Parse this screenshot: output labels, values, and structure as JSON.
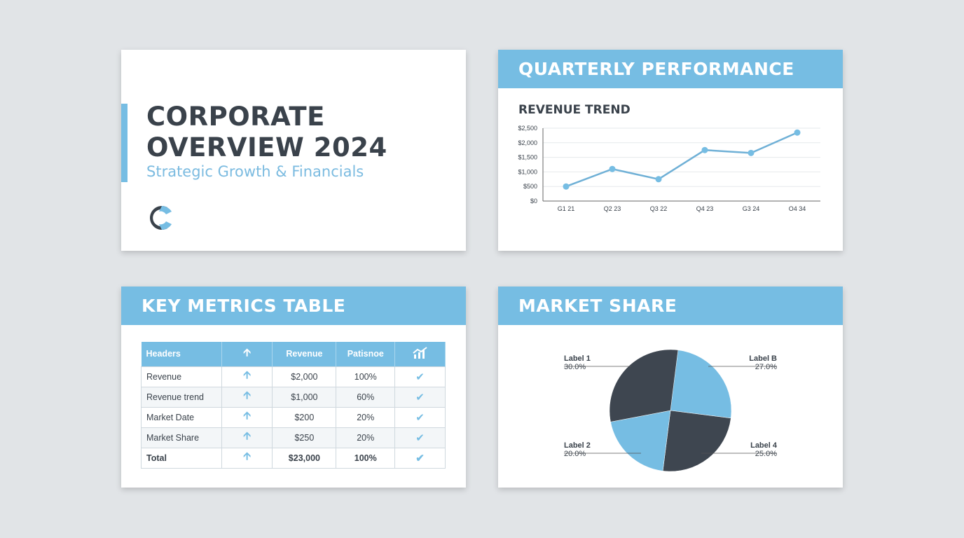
{
  "slides": {
    "cover": {
      "title_line1": "CORPORATE",
      "title_line2": "OVERVIEW 2024",
      "subtitle": "Strategic Growth & Financials",
      "logo": "c-logo-icon"
    },
    "quarterly": {
      "header": "QUARTERLY PERFORMANCE",
      "chart_title": "REVENUE TREND"
    },
    "metrics": {
      "header": "KEY METRICS TABLE",
      "columns": [
        "Headers",
        "↑",
        "Revenue",
        "Patisnoe",
        "chart-icon"
      ],
      "rows": [
        {
          "name": "Revenue",
          "revenue": "$2,000",
          "pct": "100%"
        },
        {
          "name": "Revenue trend",
          "revenue": "$1,000",
          "pct": "60%"
        },
        {
          "name": "Market Date",
          "revenue": "$200",
          "pct": "20%"
        },
        {
          "name": "Market Share",
          "revenue": "$250",
          "pct": "20%"
        },
        {
          "name": "Total",
          "revenue": "$23,000",
          "pct": "100%"
        }
      ]
    },
    "market": {
      "header": "MARKET SHARE"
    }
  },
  "colors": {
    "accent": "#76bde3",
    "dark": "#3a424b",
    "background": "#e1e4e7"
  },
  "chart_data": [
    {
      "type": "line",
      "title": "REVENUE TREND",
      "categories": [
        "G1 21",
        "Q2 23",
        "Q3 22",
        "Q4 23",
        "G3 24",
        "O4 34"
      ],
      "values": [
        500,
        1100,
        750,
        1750,
        1650,
        2350
      ],
      "ylim": [
        0,
        2500
      ],
      "yticks": [
        "$0",
        "$500",
        "$1,000",
        "$1,500",
        "$2,000",
        "$2,500"
      ],
      "grid": true
    },
    {
      "type": "pie",
      "title": "MARKET SHARE",
      "labels": [
        "Label 1",
        "Label B",
        "Label 2",
        "Label 4"
      ],
      "values": [
        30.0,
        27.0,
        20.0,
        25.0
      ],
      "value_labels": [
        "30.0%",
        "27.0%",
        "20.0%",
        "25.0%"
      ]
    }
  ]
}
